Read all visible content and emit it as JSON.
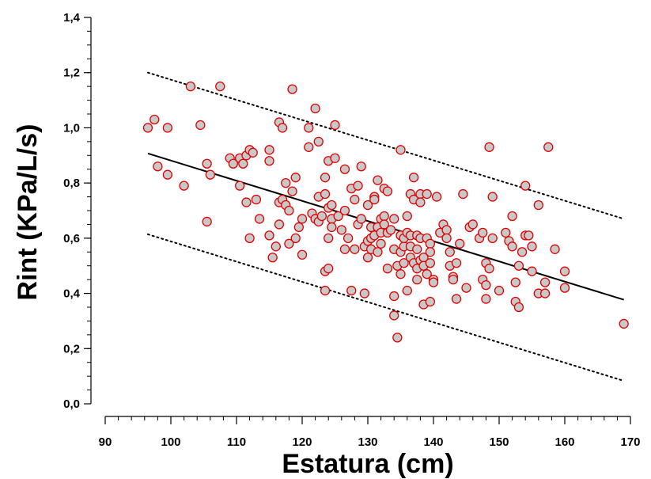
{
  "chart_data": {
    "type": "scatter",
    "title": "",
    "xlabel": "Estatura (cm)",
    "ylabel": "Rint (KPa/L/s)",
    "xlim": [
      90,
      170
    ],
    "ylim": [
      0.0,
      1.4
    ],
    "x_ticks": [
      90,
      100,
      110,
      120,
      130,
      140,
      150,
      160,
      170
    ],
    "x_tick_labels": [
      "90",
      "100",
      "110",
      "120",
      "130",
      "140",
      "150",
      "160",
      "170"
    ],
    "y_ticks": [
      0.0,
      0.2,
      0.4,
      0.6,
      0.8,
      1.0,
      1.2,
      1.4
    ],
    "y_tick_labels": [
      "0,0",
      "0,2",
      "0,4",
      "0,6",
      "0,8",
      "1,0",
      "1,2",
      "1,4"
    ],
    "x_minor_step": 2,
    "y_minor_step": 0.05,
    "grid": false,
    "legend": "none",
    "point_fill": "#c8c8c8",
    "point_stroke": "#e00000",
    "regression_line": {
      "style": "solid",
      "color": "#000000",
      "x": [
        96.5,
        169
      ],
      "y": [
        0.907,
        0.377
      ]
    },
    "upper_bound": {
      "style": "dotted",
      "color": "#000000",
      "x": [
        96.5,
        169
      ],
      "y": [
        1.2,
        0.67
      ]
    },
    "lower_bound": {
      "style": "dotted",
      "color": "#000000",
      "x": [
        96.5,
        169
      ],
      "y": [
        0.614,
        0.083
      ]
    },
    "points": [
      [
        96.5,
        1.0
      ],
      [
        97.5,
        1.03
      ],
      [
        98,
        0.86
      ],
      [
        99.5,
        1.0
      ],
      [
        99.5,
        0.83
      ],
      [
        102,
        0.79
      ],
      [
        103,
        1.15
      ],
      [
        104.5,
        1.01
      ],
      [
        105.5,
        0.87
      ],
      [
        105.5,
        0.66
      ],
      [
        106,
        0.83
      ],
      [
        107.5,
        1.15
      ],
      [
        109,
        0.89
      ],
      [
        109.5,
        0.87
      ],
      [
        110.5,
        0.89
      ],
      [
        110.5,
        0.79
      ],
      [
        111,
        0.87
      ],
      [
        111.5,
        0.9
      ],
      [
        111.5,
        0.73
      ],
      [
        112,
        0.92
      ],
      [
        112,
        0.6
      ],
      [
        112.5,
        0.91
      ],
      [
        113,
        0.74
      ],
      [
        113.5,
        0.67
      ],
      [
        115,
        0.92
      ],
      [
        115,
        0.88
      ],
      [
        115,
        0.61
      ],
      [
        115.5,
        0.53
      ],
      [
        116,
        0.57
      ],
      [
        116.5,
        0.65
      ],
      [
        116.5,
        0.73
      ],
      [
        116.5,
        1.02
      ],
      [
        117,
        1.0
      ],
      [
        117,
        0.74
      ],
      [
        117.5,
        0.8
      ],
      [
        117.5,
        0.72
      ],
      [
        118,
        0.7
      ],
      [
        118,
        0.58
      ],
      [
        118.5,
        0.77
      ],
      [
        118.5,
        1.14
      ],
      [
        119,
        0.82
      ],
      [
        119,
        0.6
      ],
      [
        119.5,
        0.64
      ],
      [
        120,
        0.67
      ],
      [
        120,
        0.54
      ],
      [
        121,
        0.93
      ],
      [
        121,
        1.0
      ],
      [
        121.5,
        0.69
      ],
      [
        122,
        0.67
      ],
      [
        122,
        1.07
      ],
      [
        122.5,
        0.95
      ],
      [
        122.5,
        0.75
      ],
      [
        122.5,
        0.66
      ],
      [
        123,
        0.68
      ],
      [
        123.5,
        0.76
      ],
      [
        123.5,
        0.82
      ],
      [
        123.5,
        0.48
      ],
      [
        123.5,
        0.41
      ],
      [
        124,
        0.88
      ],
      [
        124,
        0.71
      ],
      [
        124,
        0.6
      ],
      [
        124,
        0.49
      ],
      [
        124.5,
        0.67
      ],
      [
        124.5,
        0.64
      ],
      [
        124.5,
        0.72
      ],
      [
        125,
        1.01
      ],
      [
        125,
        0.89
      ],
      [
        125.5,
        0.68
      ],
      [
        126,
        0.63
      ],
      [
        126.5,
        0.56
      ],
      [
        126.5,
        0.7
      ],
      [
        126.5,
        0.85
      ],
      [
        127,
        0.6
      ],
      [
        127.5,
        0.78
      ],
      [
        127.5,
        0.41
      ],
      [
        128,
        0.56
      ],
      [
        128,
        0.74
      ],
      [
        128.5,
        0.79
      ],
      [
        128.5,
        0.65
      ],
      [
        129,
        0.86
      ],
      [
        129,
        0.67
      ],
      [
        129.5,
        0.57
      ],
      [
        129.5,
        0.4
      ],
      [
        130,
        0.53
      ],
      [
        130,
        0.72
      ],
      [
        130,
        0.59
      ],
      [
        130.5,
        0.56
      ],
      [
        130.5,
        0.64
      ],
      [
        130.5,
        0.6
      ],
      [
        131,
        0.75
      ],
      [
        131,
        0.74
      ],
      [
        131,
        0.61
      ],
      [
        131.5,
        0.81
      ],
      [
        131.5,
        0.64
      ],
      [
        131.5,
        0.55
      ],
      [
        132,
        0.67
      ],
      [
        132,
        0.58
      ],
      [
        132,
        0.62
      ],
      [
        132.5,
        0.68
      ],
      [
        132.5,
        0.65
      ],
      [
        132.5,
        0.78
      ],
      [
        133,
        0.77
      ],
      [
        133,
        0.49
      ],
      [
        133,
        0.62
      ],
      [
        133.5,
        0.63
      ],
      [
        134,
        0.56
      ],
      [
        134,
        0.67
      ],
      [
        134,
        0.39
      ],
      [
        134,
        0.32
      ],
      [
        134.5,
        0.5
      ],
      [
        134.5,
        0.24
      ],
      [
        135,
        0.92
      ],
      [
        135,
        0.55
      ],
      [
        135,
        0.61
      ],
      [
        135,
        0.47
      ],
      [
        135.5,
        0.57
      ],
      [
        135.5,
        0.6
      ],
      [
        135.5,
        0.51
      ],
      [
        136,
        0.68
      ],
      [
        136,
        0.62
      ],
      [
        136,
        0.41
      ],
      [
        136.5,
        0.76
      ],
      [
        136.5,
        0.61
      ],
      [
        136.5,
        0.57
      ],
      [
        136.5,
        0.53
      ],
      [
        137,
        0.82
      ],
      [
        137,
        0.74
      ],
      [
        137,
        0.51
      ],
      [
        137.5,
        0.61
      ],
      [
        137.5,
        0.56
      ],
      [
        137.5,
        0.49
      ],
      [
        137.5,
        0.45
      ],
      [
        138,
        0.76
      ],
      [
        138,
        0.73
      ],
      [
        138,
        0.52
      ],
      [
        138,
        0.6
      ],
      [
        138.5,
        0.53
      ],
      [
        138.5,
        0.5
      ],
      [
        138.5,
        0.36
      ],
      [
        139,
        0.76
      ],
      [
        139,
        0.6
      ],
      [
        139,
        0.47
      ],
      [
        139.5,
        0.58
      ],
      [
        139.5,
        0.55
      ],
      [
        139.5,
        0.51
      ],
      [
        139.5,
        0.37
      ],
      [
        140,
        0.45
      ],
      [
        140,
        0.44
      ],
      [
        140.5,
        0.75
      ],
      [
        141,
        0.62
      ],
      [
        141.5,
        0.65
      ],
      [
        142,
        0.63
      ],
      [
        142,
        0.6
      ],
      [
        142.5,
        0.55
      ],
      [
        142.5,
        0.5
      ],
      [
        143,
        0.46
      ],
      [
        143,
        0.45
      ],
      [
        143.5,
        0.51
      ],
      [
        143.5,
        0.38
      ],
      [
        144,
        0.58
      ],
      [
        144.5,
        0.76
      ],
      [
        145,
        0.42
      ],
      [
        145.5,
        0.64
      ],
      [
        146,
        0.65
      ],
      [
        147,
        0.6
      ],
      [
        147.5,
        0.62
      ],
      [
        147.5,
        0.45
      ],
      [
        148,
        0.51
      ],
      [
        148,
        0.43
      ],
      [
        148,
        0.38
      ],
      [
        148.5,
        0.93
      ],
      [
        148.5,
        0.49
      ],
      [
        149,
        0.75
      ],
      [
        149,
        0.6
      ],
      [
        150,
        0.41
      ],
      [
        151,
        0.62
      ],
      [
        151.5,
        0.59
      ],
      [
        152,
        0.68
      ],
      [
        152,
        0.57
      ],
      [
        152.5,
        0.44
      ],
      [
        152.5,
        0.37
      ],
      [
        153,
        0.35
      ],
      [
        153,
        0.5
      ],
      [
        153.5,
        0.55
      ],
      [
        154,
        0.61
      ],
      [
        154,
        0.79
      ],
      [
        154.5,
        0.61
      ],
      [
        155,
        0.57
      ],
      [
        155,
        0.48
      ],
      [
        156,
        0.72
      ],
      [
        156,
        0.4
      ],
      [
        157,
        0.4
      ],
      [
        157,
        0.44
      ],
      [
        157.5,
        0.93
      ],
      [
        158.5,
        0.56
      ],
      [
        160,
        0.48
      ],
      [
        160,
        0.42
      ],
      [
        169,
        0.29
      ]
    ]
  }
}
